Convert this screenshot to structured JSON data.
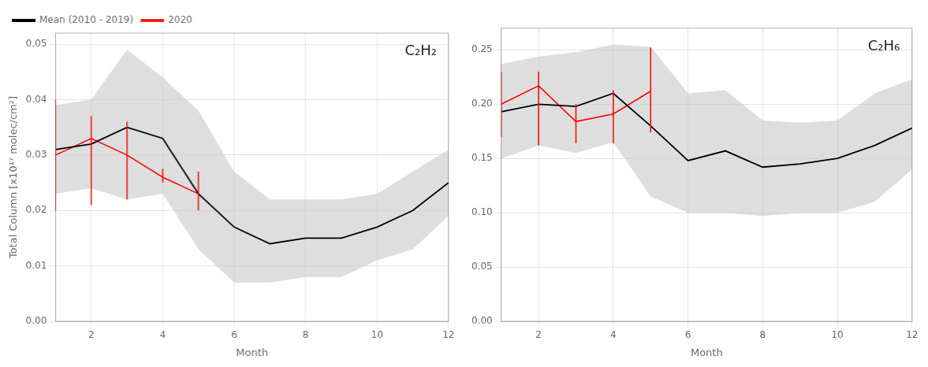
{
  "chart_data": [
    {
      "type": "line",
      "title": "C₂H₂",
      "xlabel": "Month",
      "ylabel": "Total Column [x10¹⁷ molec/cm²]",
      "x": [
        1,
        2,
        3,
        4,
        5,
        6,
        7,
        8,
        9,
        10,
        11,
        12
      ],
      "band": {
        "upper": [
          0.039,
          0.04,
          0.049,
          0.044,
          0.038,
          0.027,
          0.022,
          0.022,
          0.022,
          0.023,
          0.027,
          0.031
        ],
        "lower": [
          0.023,
          0.024,
          0.022,
          0.023,
          0.013,
          0.007,
          0.007,
          0.008,
          0.008,
          0.011,
          0.013,
          0.019
        ],
        "color": "#c8c8c8"
      },
      "series": [
        {
          "name": "Mean (2010 - 2019)",
          "color": "#000000",
          "values": [
            0.031,
            0.032,
            0.035,
            0.033,
            0.023,
            0.017,
            0.014,
            0.015,
            0.015,
            0.017,
            0.02,
            0.025
          ]
        },
        {
          "name": "2020",
          "color": "#ff0000",
          "x": [
            1,
            2,
            3,
            4,
            5
          ],
          "values": [
            0.03,
            0.033,
            0.03,
            0.026,
            0.023
          ],
          "error_upper": [
            0.01,
            0.004,
            0.006,
            0.0015,
            0.004
          ],
          "error_lower": [
            0.01,
            0.012,
            0.008,
            0.001,
            0.003
          ]
        }
      ],
      "xlim": [
        1,
        12
      ],
      "xticks": [
        2,
        4,
        6,
        8,
        10,
        12
      ],
      "ylim": [
        0.0,
        0.052
      ],
      "yticks": [
        {
          "value": 0.0,
          "label": "0.00"
        },
        {
          "value": 0.01,
          "label": "0.01"
        },
        {
          "value": 0.02,
          "label": "0.02"
        },
        {
          "value": 0.03,
          "label": "0.03"
        },
        {
          "value": 0.04,
          "label": "0.04"
        },
        {
          "value": 0.05,
          "label": "0.05"
        }
      ],
      "grid": true,
      "legend": "top left"
    },
    {
      "type": "line",
      "title": "C₂H₆",
      "xlabel": "Month",
      "x": [
        1,
        2,
        3,
        4,
        5,
        6,
        7,
        8,
        9,
        10,
        11,
        12
      ],
      "band": {
        "upper": [
          0.237,
          0.244,
          0.248,
          0.255,
          0.253,
          0.21,
          0.213,
          0.185,
          0.183,
          0.185,
          0.21,
          0.223
        ],
        "lower": [
          0.15,
          0.162,
          0.155,
          0.165,
          0.115,
          0.1,
          0.1,
          0.097,
          0.1,
          0.1,
          0.11,
          0.14
        ],
        "color": "#c8c8c8"
      },
      "series": [
        {
          "name": "Mean (2010 - 2019)",
          "color": "#000000",
          "values": [
            0.193,
            0.2,
            0.198,
            0.21,
            0.18,
            0.148,
            0.157,
            0.142,
            0.145,
            0.15,
            0.162,
            0.178
          ]
        },
        {
          "name": "2020",
          "color": "#ff0000",
          "x": [
            1,
            2,
            3,
            4,
            5
          ],
          "values": [
            0.2,
            0.217,
            0.184,
            0.191,
            0.212
          ],
          "error_upper": [
            0.03,
            0.013,
            0.016,
            0.022,
            0.04
          ],
          "error_lower": [
            0.03,
            0.055,
            0.02,
            0.027,
            0.038
          ]
        }
      ],
      "xlim": [
        1,
        12
      ],
      "xticks": [
        2,
        4,
        6,
        8,
        10,
        12
      ],
      "ylim": [
        0.0,
        0.27
      ],
      "yticks": [
        {
          "value": 0.0,
          "label": "0.00"
        },
        {
          "value": 0.05,
          "label": "0.05"
        },
        {
          "value": 0.1,
          "label": "0.10"
        },
        {
          "value": 0.15,
          "label": "0.15"
        },
        {
          "value": 0.2,
          "label": "0.20"
        },
        {
          "value": 0.25,
          "label": "0.25"
        }
      ],
      "grid": true
    }
  ]
}
